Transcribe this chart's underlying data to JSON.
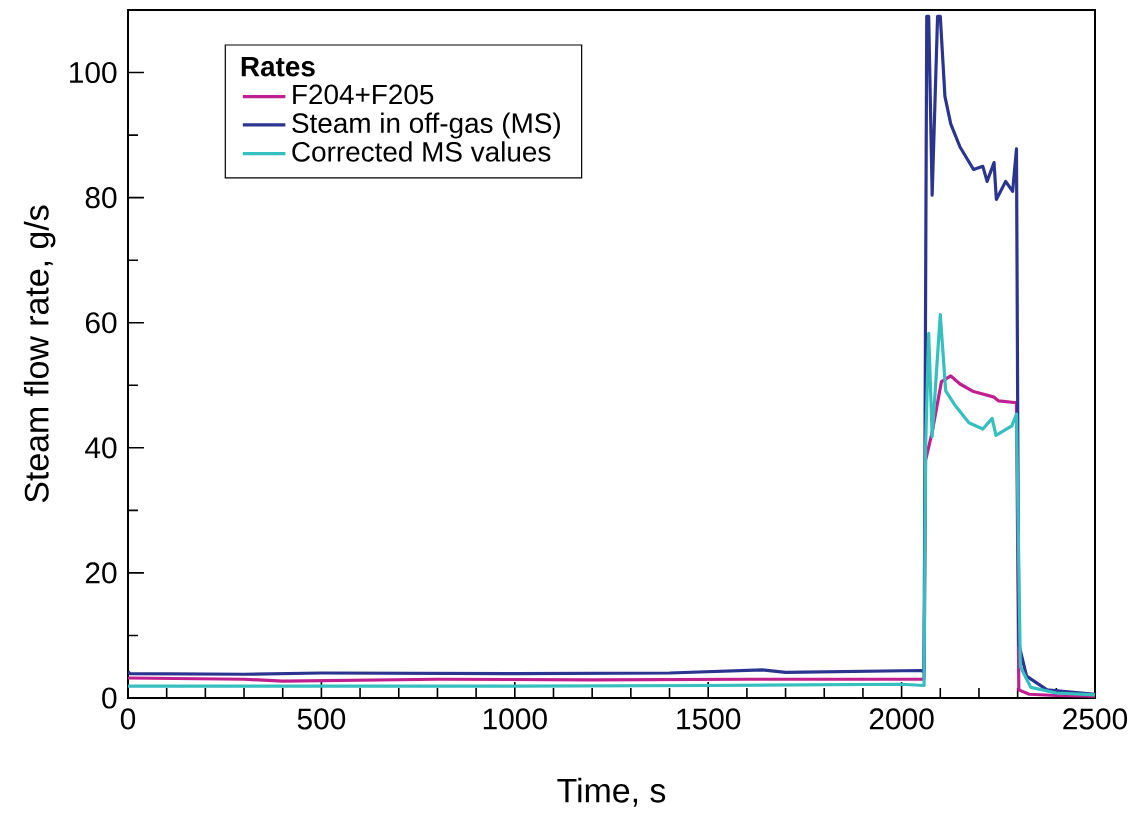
{
  "chart_data": {
    "type": "line",
    "xlabel": "Time, s",
    "ylabel": "Steam flow rate, g/s",
    "legend_title": "Rates",
    "legend": "top left",
    "xlim": [
      0,
      2500
    ],
    "ylim": [
      0,
      110
    ],
    "xticks": [
      0,
      500,
      1000,
      1500,
      2000,
      2500
    ],
    "yticks": [
      0,
      20,
      40,
      60,
      80,
      100
    ],
    "grid": false,
    "marker": "none",
    "line_style": "solid",
    "series": [
      {
        "name": "F204+F205",
        "color": "#c0208f",
        "x": [
          0,
          300,
          400,
          800,
          1200,
          1600,
          2000,
          2058,
          2062,
          2079,
          2103,
          2127,
          2151,
          2186,
          2239,
          2251,
          2297,
          2303,
          2330,
          2400,
          2500
        ],
        "values": [
          3.2,
          3.0,
          2.7,
          3.0,
          2.9,
          3.0,
          3.0,
          3.0,
          38,
          42.5,
          50.6,
          51.5,
          50.2,
          49.0,
          48.1,
          47.5,
          47.2,
          1.3,
          0.6,
          0.4,
          0.3
        ]
      },
      {
        "name": "Steam in off-gas (MS)",
        "color": "#2b3590",
        "x": [
          0,
          5,
          300,
          500,
          1000,
          1400,
          1640,
          1700,
          2050,
          2058,
          2065,
          2070,
          2079,
          2093,
          2100,
          2112,
          2127,
          2151,
          2186,
          2210,
          2221,
          2239,
          2245,
          2269,
          2287,
          2297,
          2303,
          2323,
          2376,
          2500
        ],
        "values": [
          4.2,
          3.9,
          3.8,
          4.0,
          3.9,
          4.0,
          4.5,
          4.1,
          4.4,
          4.2,
          109,
          109,
          80.4,
          109,
          109,
          96.2,
          91.8,
          88.1,
          84.5,
          85.0,
          82.6,
          85.6,
          79.7,
          82.6,
          81.0,
          87.8,
          8.6,
          3.5,
          1.3,
          0.6
        ]
      },
      {
        "name": "Corrected MS values",
        "color": "#36bfbf",
        "x": [
          0,
          500,
          1000,
          1500,
          2000,
          2058,
          2062,
          2070,
          2079,
          2100,
          2114,
          2137,
          2174,
          2210,
          2234,
          2244,
          2285,
          2297,
          2307,
          2334,
          2400,
          2500
        ],
        "values": [
          1.9,
          1.9,
          1.9,
          2.0,
          2.2,
          2.0,
          40,
          58.3,
          41.8,
          61.3,
          49.1,
          46.9,
          44.0,
          43.0,
          44.7,
          42.0,
          43.5,
          45.4,
          5.0,
          1.7,
          0.8,
          0.5
        ]
      }
    ]
  }
}
